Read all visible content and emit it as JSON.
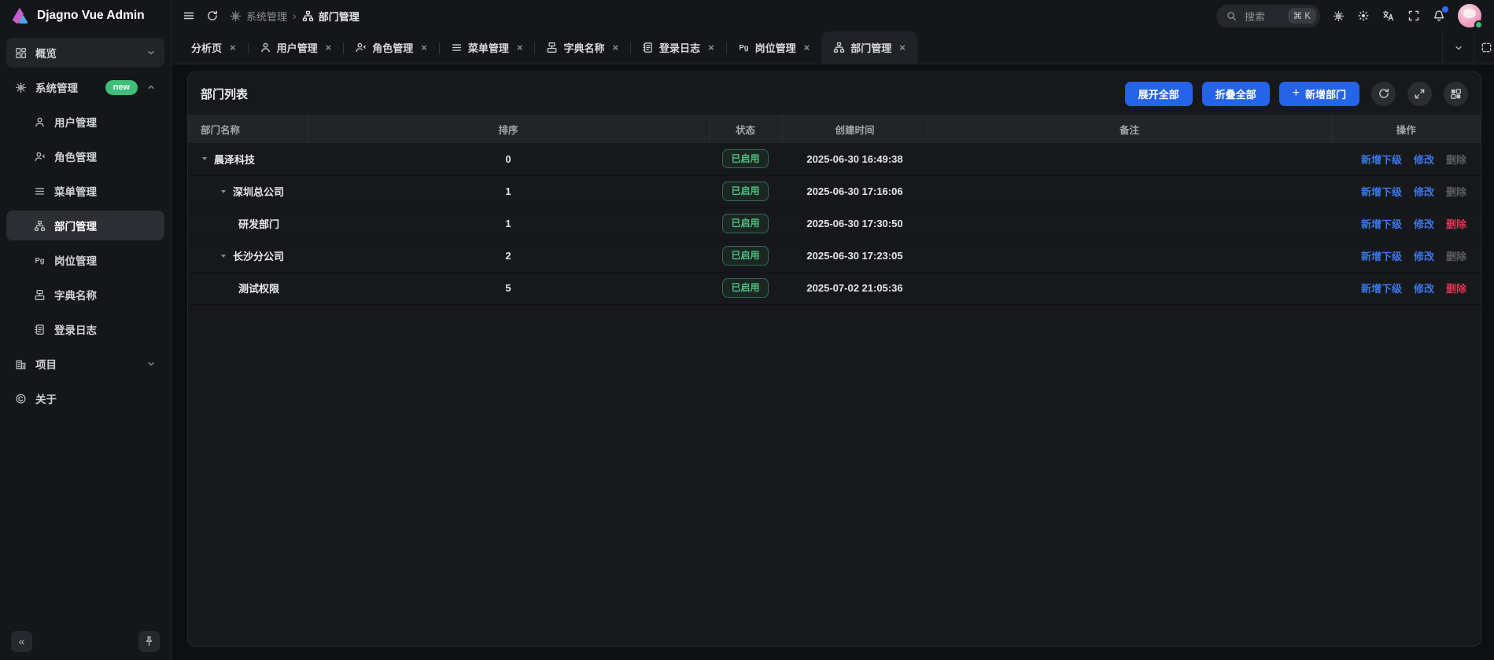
{
  "app": {
    "title": "Djagno Vue Admin"
  },
  "header": {
    "breadcrumb": [
      {
        "icon": "gear-icon",
        "label": "系统管理"
      },
      {
        "icon": "org-icon",
        "label": "部门管理"
      }
    ],
    "separator": "›",
    "search": {
      "placeholder": "搜索",
      "shortcut": "⌘ K"
    }
  },
  "sidebar": {
    "items": [
      {
        "icon": "dashboard",
        "label": "概览",
        "chevron": "down",
        "boxed": true
      },
      {
        "icon": "gear",
        "label": "系统管理",
        "badge": "new",
        "chevron": "up"
      },
      {
        "icon": "user",
        "label": "用户管理",
        "child": true
      },
      {
        "icon": "role",
        "label": "角色管理",
        "child": true
      },
      {
        "icon": "menu",
        "label": "菜单管理",
        "child": true
      },
      {
        "icon": "dept",
        "label": "部门管理",
        "child": true,
        "active": true
      },
      {
        "icon": "pg",
        "label": "岗位管理",
        "child": true
      },
      {
        "icon": "dict",
        "label": "字典名称",
        "child": true
      },
      {
        "icon": "log",
        "label": "登录日志",
        "child": true
      },
      {
        "icon": "project",
        "label": "项目",
        "chevron": "down"
      },
      {
        "icon": "about",
        "label": "关于"
      }
    ],
    "collapse_label": "«"
  },
  "tabs": [
    {
      "label": "分析页"
    },
    {
      "icon": "user",
      "label": "用户管理"
    },
    {
      "icon": "role",
      "label": "角色管理"
    },
    {
      "icon": "menu",
      "label": "菜单管理"
    },
    {
      "icon": "dict",
      "label": "字典名称"
    },
    {
      "icon": "log",
      "label": "登录日志"
    },
    {
      "icon": "pg",
      "label": "岗位管理"
    },
    {
      "icon": "dept",
      "label": "部门管理",
      "active": true
    }
  ],
  "panel": {
    "title": "部门列表",
    "buttons": {
      "expand_all": "展开全部",
      "collapse_all": "折叠全部",
      "add": "新增部门"
    },
    "table": {
      "columns": [
        "部门名称",
        "排序",
        "状态",
        "创建时间",
        "备注",
        "操作"
      ],
      "action_labels": {
        "add_child": "新增下级",
        "edit": "修改",
        "delete": "删除"
      },
      "rows": [
        {
          "name": "晨泽科技",
          "level": 0,
          "caret": true,
          "sort": "0",
          "status": "已启用",
          "created": "2025-06-30 16:49:38",
          "remark": "",
          "delete_enabled": false
        },
        {
          "name": "深圳总公司",
          "level": 1,
          "caret": true,
          "sort": "1",
          "status": "已启用",
          "created": "2025-06-30 17:16:06",
          "remark": "",
          "delete_enabled": false
        },
        {
          "name": "研发部门",
          "level": 2,
          "caret": false,
          "sort": "1",
          "status": "已启用",
          "created": "2025-06-30 17:30:50",
          "remark": "",
          "delete_enabled": true
        },
        {
          "name": "长沙分公司",
          "level": 1,
          "caret": true,
          "sort": "2",
          "status": "已启用",
          "created": "2025-06-30 17:23:05",
          "remark": "",
          "delete_enabled": false
        },
        {
          "name": "测试权限",
          "level": 2,
          "caret": false,
          "sort": "5",
          "status": "已启用",
          "created": "2025-07-02 21:05:36",
          "remark": "",
          "delete_enabled": true
        }
      ]
    }
  },
  "colors": {
    "accent_blue": "#2563e8",
    "link_blue": "#3a77ed",
    "danger_red": "#df3350",
    "status_green": "#4ec27f",
    "badge_green": "#3fbe77",
    "notification_blue": "#2f6bff"
  }
}
